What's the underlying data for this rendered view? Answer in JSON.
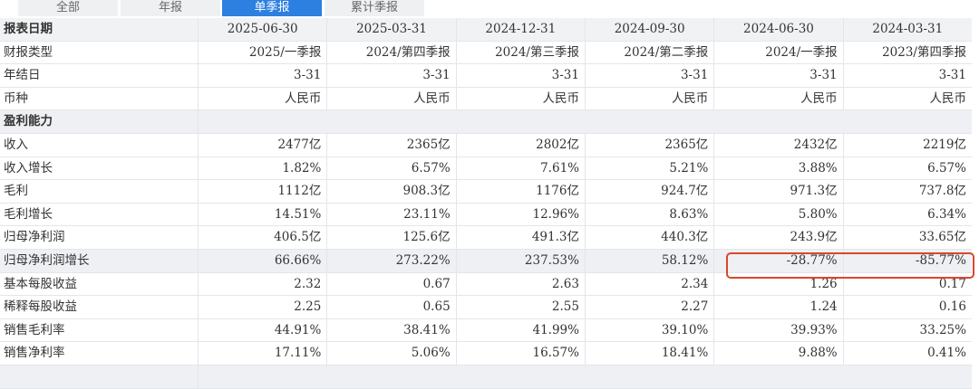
{
  "tabs": [
    "全部",
    "年报",
    "单季报",
    "累计季报"
  ],
  "table": {
    "header": {
      "label": "报表日期",
      "cells": [
        "2025-06-30",
        "2025-03-31",
        "2024-12-31",
        "2024-09-30",
        "2024-06-30",
        "2024-03-31"
      ]
    },
    "rows": [
      {
        "label": "财报类型",
        "cells": [
          "2025/一季报",
          "2024/第四季报",
          "2024/第三季报",
          "2024/第二季报",
          "2024/一季报",
          "2023/第四季报"
        ]
      },
      {
        "label": "年结日",
        "cells": [
          "3-31",
          "3-31",
          "3-31",
          "3-31",
          "3-31",
          "3-31"
        ]
      },
      {
        "label": "币种",
        "cells": [
          "人民币",
          "人民币",
          "人民币",
          "人民币",
          "人民币",
          "人民币"
        ]
      },
      {
        "label": "盈利能力"
      },
      {
        "label": "收入",
        "cells": [
          "2477亿",
          "2365亿",
          "2802亿",
          "2365亿",
          "2432亿",
          "2219亿"
        ]
      },
      {
        "label": "收入增长",
        "cells": [
          "1.82%",
          "6.57%",
          "7.61%",
          "5.21%",
          "3.88%",
          "6.57%"
        ]
      },
      {
        "label": "毛利",
        "cells": [
          "1112亿",
          "908.3亿",
          "1176亿",
          "924.7亿",
          "971.3亿",
          "737.8亿"
        ]
      },
      {
        "label": "毛利增长",
        "cells": [
          "14.51%",
          "23.11%",
          "12.96%",
          "8.63%",
          "5.80%",
          "6.34%"
        ]
      },
      {
        "label": "归母净利润",
        "cells": [
          "406.5亿",
          "125.6亿",
          "491.3亿",
          "440.3亿",
          "243.9亿",
          "33.65亿"
        ]
      },
      {
        "label": "归母净利润增长",
        "cells": [
          "66.66%",
          "273.22%",
          "237.53%",
          "58.12%",
          "-28.77%",
          "-85.77%"
        ]
      },
      {
        "label": "基本每股收益",
        "cells": [
          "2.32",
          "0.67",
          "2.63",
          "2.34",
          "1.26",
          "0.17"
        ]
      },
      {
        "label": "稀释每股收益",
        "cells": [
          "2.25",
          "0.65",
          "2.55",
          "2.27",
          "1.24",
          "0.16"
        ]
      },
      {
        "label": "销售毛利率",
        "cells": [
          "44.91%",
          "38.41%",
          "41.99%",
          "39.10%",
          "39.93%",
          "33.25%"
        ]
      },
      {
        "label": "销售净利率",
        "cells": [
          "17.11%",
          "5.06%",
          "16.57%",
          "18.41%",
          "9.88%",
          "0.41%"
        ]
      }
    ]
  }
}
